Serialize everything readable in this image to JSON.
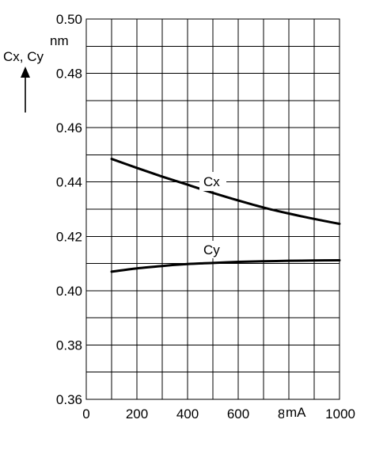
{
  "chart_data": {
    "type": "line",
    "ylabel": "Cx, Cy",
    "y_unit": "nm",
    "x_unit": "mA",
    "xlim": [
      0,
      1000
    ],
    "ylim": [
      0.36,
      0.5
    ],
    "x_ticks": [
      "0",
      "200",
      "400",
      "600",
      "800",
      "1000"
    ],
    "y_ticks": [
      "0.36",
      "0.38",
      "0.40",
      "0.42",
      "0.44",
      "0.46",
      "0.48",
      "0.50"
    ],
    "grid": true,
    "series": [
      {
        "name": "Cx",
        "x": [
          100,
          200,
          300,
          400,
          500,
          600,
          700,
          800,
          900,
          1000
        ],
        "y": [
          0.4485,
          0.4452,
          0.442,
          0.439,
          0.436,
          0.4332,
          0.4306,
          0.4284,
          0.4264,
          0.4246
        ]
      },
      {
        "name": "Cy",
        "x": [
          100,
          200,
          300,
          400,
          500,
          600,
          700,
          800,
          900,
          1000
        ],
        "y": [
          0.407,
          0.4082,
          0.4091,
          0.4098,
          0.4102,
          0.4106,
          0.4108,
          0.411,
          0.4111,
          0.4112
        ]
      }
    ]
  }
}
